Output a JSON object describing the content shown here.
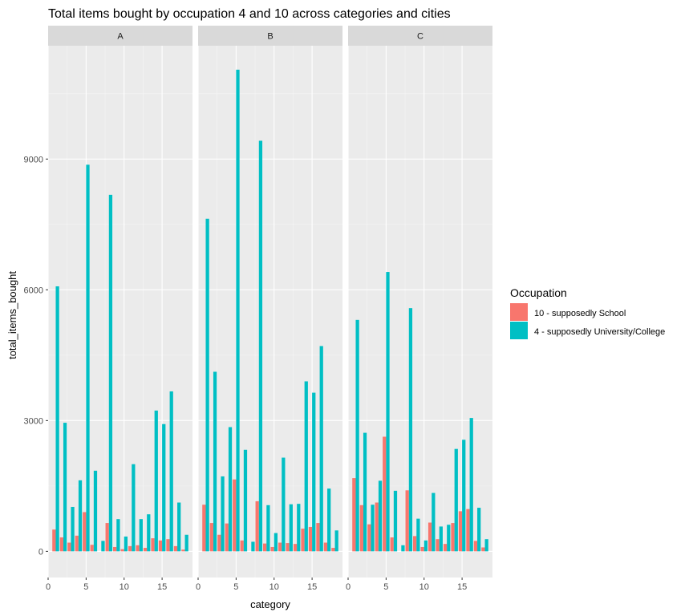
{
  "chart_data": {
    "type": "bar",
    "title": "Total items bought by occupation 4 and 10 across categories and cities",
    "xlabel": "category",
    "ylabel": "total_items_bought",
    "xlim": [
      0,
      19
    ],
    "ylim": [
      -600,
      11600
    ],
    "x_ticks": [
      0,
      5,
      10,
      15
    ],
    "y_ticks": [
      0,
      3000,
      6000,
      9000
    ],
    "grid": true,
    "facets": [
      "A",
      "B",
      "C"
    ],
    "categories": [
      1,
      2,
      3,
      4,
      5,
      6,
      7,
      8,
      9,
      10,
      11,
      12,
      13,
      14,
      15,
      16,
      17,
      18
    ],
    "legend": {
      "title": "Occupation",
      "position": "right",
      "entries": [
        "10 - supposedly School",
        "4 - supposedly University/College"
      ]
    },
    "colors": {
      "occ10": "#F8766D",
      "occ4": "#00BFC4"
    },
    "series": [
      {
        "name": "10 - supposedly School",
        "color": "#F8766D",
        "values_by_facet": {
          "A": [
            500,
            320,
            200,
            360,
            900,
            150,
            0,
            650,
            100,
            50,
            120,
            140,
            80,
            300,
            250,
            280,
            120,
            40
          ],
          "B": [
            1070,
            650,
            380,
            640,
            1650,
            250,
            0,
            1150,
            180,
            100,
            200,
            190,
            170,
            520,
            560,
            650,
            200,
            80
          ],
          "C": [
            1680,
            1060,
            620,
            1120,
            2630,
            320,
            0,
            1400,
            350,
            100,
            660,
            280,
            170,
            650,
            920,
            970,
            240,
            90
          ]
        }
      },
      {
        "name": "4 - supposedly University/College",
        "color": "#00BFC4",
        "values_by_facet": {
          "A": [
            6080,
            2950,
            1020,
            1630,
            8870,
            1850,
            240,
            8180,
            740,
            340,
            2000,
            740,
            850,
            3230,
            2920,
            3670,
            1120,
            380
          ],
          "B": [
            7630,
            4120,
            1720,
            2850,
            11050,
            2330,
            220,
            9420,
            1060,
            420,
            2150,
            1080,
            1090,
            3900,
            3640,
            4710,
            1440,
            480
          ],
          "C": [
            5310,
            2720,
            1070,
            1620,
            6410,
            1390,
            140,
            5580,
            750,
            250,
            1340,
            570,
            610,
            2350,
            2560,
            3060,
            1000,
            280
          ]
        }
      }
    ]
  }
}
